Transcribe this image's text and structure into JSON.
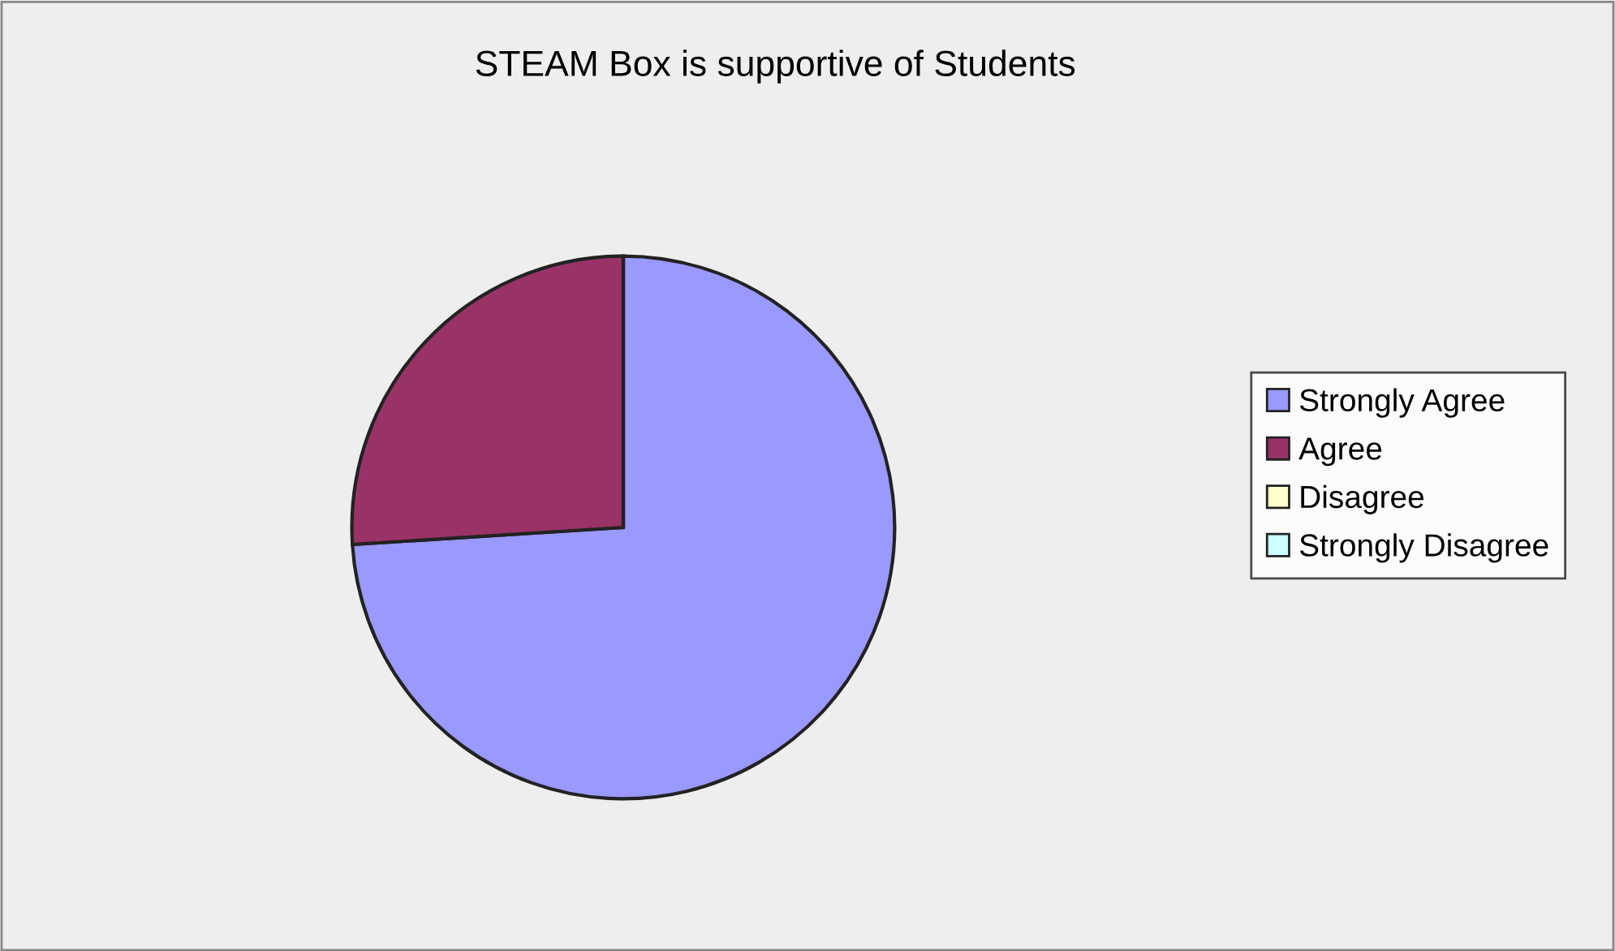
{
  "chart_data": {
    "type": "pie",
    "title": "STEAM Box is supportive of Students",
    "categories": [
      "Strongly Agree",
      "Agree",
      "Disagree",
      "Strongly Disagree"
    ],
    "values": [
      74,
      26,
      0,
      0
    ],
    "colors": [
      "#9999ff",
      "#993366",
      "#ffffcc",
      "#ccffff"
    ],
    "legend": "right"
  }
}
